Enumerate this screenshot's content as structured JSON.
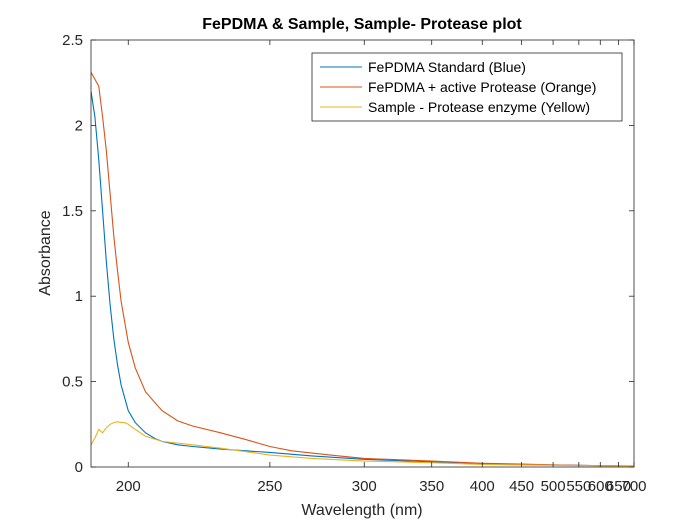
{
  "chart_data": {
    "type": "line",
    "title": "FePDMA & Sample, Sample- Protease plot",
    "xlabel": "Wavelength (nm)",
    "ylabel": "Absorbance",
    "x_scale": "reciprocal",
    "xlim": [
      190,
      700
    ],
    "ylim": [
      0,
      2.5
    ],
    "x_ticks": [
      200,
      250,
      300,
      350,
      400,
      450,
      500,
      550,
      600,
      650,
      700
    ],
    "x_tick_labels": [
      "200",
      "250",
      "300",
      "350",
      "400",
      "450",
      "500",
      "550",
      "600",
      "650",
      "700"
    ],
    "y_ticks": [
      0,
      0.5,
      1,
      1.5,
      2,
      2.5
    ],
    "y_tick_labels": [
      "0",
      "0.5",
      "1",
      "1.5",
      "2",
      "2.5"
    ],
    "grid": false,
    "legend_position": "top-right",
    "series": [
      {
        "name": "FePDMA Standard (Blue)",
        "color": "#0072BD",
        "x": [
          190,
          191,
          192,
          193,
          194,
          195,
          196,
          197,
          198,
          200,
          202,
          205,
          208,
          210,
          215,
          220,
          230,
          250,
          270,
          300,
          350,
          400,
          450,
          500,
          600,
          700
        ],
        "y": [
          2.2,
          2.05,
          1.8,
          1.5,
          1.2,
          0.95,
          0.75,
          0.6,
          0.48,
          0.33,
          0.26,
          0.2,
          0.165,
          0.15,
          0.13,
          0.12,
          0.105,
          0.085,
          0.065,
          0.045,
          0.03,
          0.02,
          0.015,
          0.012,
          0.008,
          0.005
        ]
      },
      {
        "name": "FePDMA + active Protease (Orange)",
        "color": "#D95319",
        "x": [
          190,
          191,
          192,
          193,
          194,
          195,
          196,
          197,
          198,
          200,
          202,
          205,
          210,
          215,
          220,
          230,
          240,
          250,
          260,
          280,
          300,
          350,
          400,
          450,
          500,
          600,
          700
        ],
        "y": [
          2.31,
          2.27,
          2.23,
          2.05,
          1.85,
          1.6,
          1.35,
          1.15,
          0.97,
          0.73,
          0.58,
          0.44,
          0.33,
          0.27,
          0.24,
          0.2,
          0.16,
          0.12,
          0.095,
          0.07,
          0.05,
          0.035,
          0.022,
          0.017,
          0.012,
          0.008,
          0.006
        ]
      },
      {
        "name": "Sample - Protease enzyme (Yellow)",
        "color": "#EDB120",
        "x": [
          190,
          191,
          192,
          193,
          194,
          195,
          196,
          197,
          198,
          199,
          200,
          202,
          205,
          210,
          220,
          230,
          250,
          270,
          300,
          350,
          400,
          450,
          500,
          600,
          700
        ],
        "y": [
          0.13,
          0.17,
          0.22,
          0.2,
          0.23,
          0.25,
          0.26,
          0.265,
          0.26,
          0.26,
          0.25,
          0.22,
          0.18,
          0.15,
          0.13,
          0.11,
          0.07,
          0.05,
          0.035,
          0.025,
          0.015,
          0.012,
          0.01,
          0.007,
          0.005
        ]
      }
    ]
  }
}
